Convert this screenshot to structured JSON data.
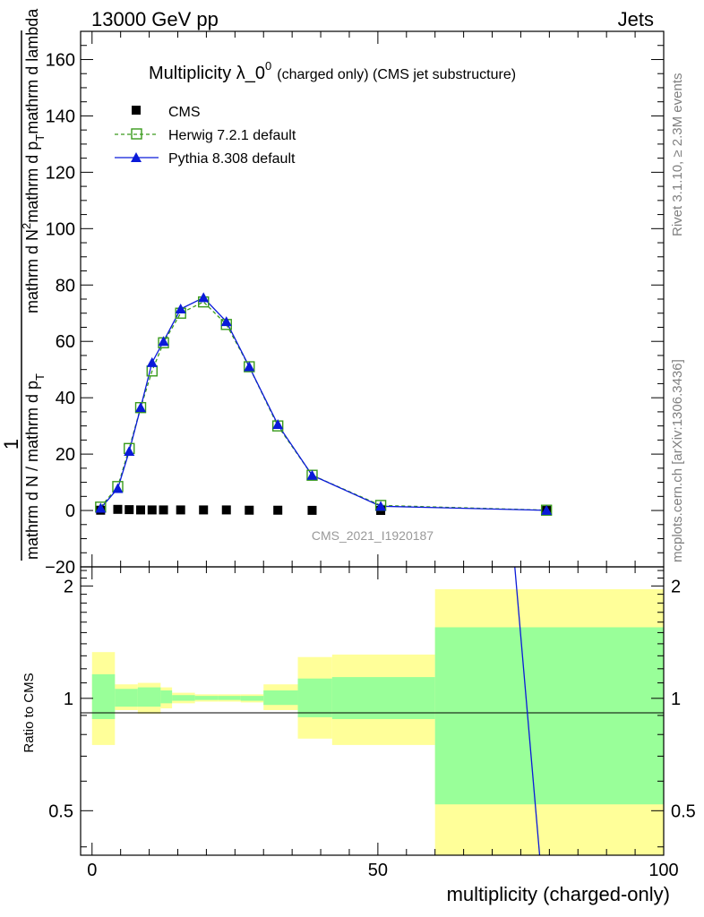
{
  "header": {
    "energy": "13000 GeV pp",
    "category": "Jets"
  },
  "side": {
    "rivet": "Rivet 3.1.10, ≥ 2.3M events",
    "source": "mcplots.cern.ch [arXiv:1306.3436]"
  },
  "chart_data": {
    "type": "scatter",
    "title": "Multiplicity λ_0",
    "title_sup": "0",
    "title_suffix": "(charged only) (CMS jet substructure)",
    "xlabel": "multiplicity (charged-only)",
    "ylabel_lines": [
      "1",
      "mathrm d N / mathrm d p",
      "T",
      "mathrm d N",
      "mathrm d p",
      "T",
      "mathrm d lambda",
      "2"
    ],
    "ratio_ylabel": "Ratio to CMS",
    "watermark": "CMS_2021_I1920187",
    "xlim": [
      -2,
      100
    ],
    "ylim": [
      -20,
      170
    ],
    "ratio_ylim": [
      0.38,
      2.25
    ],
    "x_ticks": [
      0,
      50,
      100
    ],
    "y_ticks": [
      -20,
      0,
      20,
      40,
      60,
      80,
      100,
      120,
      140,
      160
    ],
    "ratio_ticks": [
      0.5,
      1,
      2
    ],
    "legend": {
      "position": "top-left",
      "entries": [
        "CMS",
        "Herwig 7.2.1 default",
        "Pythia 8.308 default"
      ]
    },
    "series": [
      {
        "name": "CMS",
        "marker": "square",
        "color": "#000000",
        "x": [
          1.5,
          4.5,
          6.5,
          8.5,
          10.5,
          12.5,
          15.5,
          19.5,
          23.5,
          27.5,
          32.5,
          38.5,
          50.5,
          79.5
        ],
        "values": [
          0.1,
          0.4,
          0.3,
          0.2,
          0.2,
          0.2,
          0.2,
          0.2,
          0.2,
          0.1,
          0.1,
          0.05,
          0.02,
          0.0
        ]
      },
      {
        "name": "Herwig 7.2.1 default",
        "marker": "open-square",
        "color": "#3a9b1c",
        "dashed": true,
        "x": [
          1.5,
          4.5,
          6.5,
          8.5,
          10.5,
          12.5,
          15.5,
          19.5,
          23.5,
          27.5,
          32.5,
          38.5,
          50.5,
          79.5
        ],
        "values": [
          1.2,
          8.5,
          22,
          36.5,
          49.5,
          59.5,
          70,
          74,
          66,
          51,
          30,
          12.5,
          1.8,
          0.1
        ]
      },
      {
        "name": "Pythia 8.308 default",
        "marker": "triangle",
        "color": "#0a1ad9",
        "dashed": false,
        "x": [
          1.5,
          4.5,
          6.5,
          8.5,
          10.5,
          12.5,
          15.5,
          19.5,
          23.5,
          27.5,
          32.5,
          38.5,
          50.5,
          79.5
        ],
        "values": [
          0.8,
          7.8,
          21,
          36.5,
          52.5,
          60,
          71.5,
          75.5,
          67,
          51,
          30.5,
          12.5,
          1.5,
          0.05
        ]
      }
    ],
    "ratio_bands": [
      {
        "x": [
          0,
          4
        ],
        "inner": [
          0.88,
          1.16
        ],
        "outer": [
          0.75,
          1.33
        ]
      },
      {
        "x": [
          4,
          8
        ],
        "inner": [
          0.95,
          1.06
        ],
        "outer": [
          0.93,
          1.09
        ]
      },
      {
        "x": [
          8,
          12
        ],
        "inner": [
          0.95,
          1.07
        ],
        "outer": [
          0.91,
          1.1
        ]
      },
      {
        "x": [
          12,
          14
        ],
        "inner": [
          0.97,
          1.05
        ],
        "outer": [
          0.94,
          1.07
        ]
      },
      {
        "x": [
          14,
          18
        ],
        "inner": [
          0.985,
          1.02
        ],
        "outer": [
          0.97,
          1.035
        ]
      },
      {
        "x": [
          18,
          22
        ],
        "inner": [
          0.99,
          1.015
        ],
        "outer": [
          0.98,
          1.025
        ]
      },
      {
        "x": [
          22,
          26
        ],
        "inner": [
          0.99,
          1.015
        ],
        "outer": [
          0.98,
          1.025
        ]
      },
      {
        "x": [
          26,
          30
        ],
        "inner": [
          0.985,
          1.015
        ],
        "outer": [
          0.975,
          1.025
        ]
      },
      {
        "x": [
          30,
          36
        ],
        "inner": [
          0.96,
          1.05
        ],
        "outer": [
          0.93,
          1.09
        ]
      },
      {
        "x": [
          36,
          42
        ],
        "inner": [
          0.89,
          1.13
        ],
        "outer": [
          0.78,
          1.29
        ]
      },
      {
        "x": [
          42,
          60
        ],
        "inner": [
          0.88,
          1.14
        ],
        "outer": [
          0.75,
          1.31
        ]
      },
      {
        "x": [
          60,
          100
        ],
        "inner": [
          0.52,
          1.55
        ],
        "outer": [
          0.32,
          1.96
        ]
      }
    ],
    "ratio_lines": [
      {
        "name": "Pythia 8.308 default",
        "color": "#0a1ad9",
        "points": [
          [
            73.6,
            2.6
          ],
          [
            78.5,
            0.35
          ]
        ]
      }
    ]
  }
}
